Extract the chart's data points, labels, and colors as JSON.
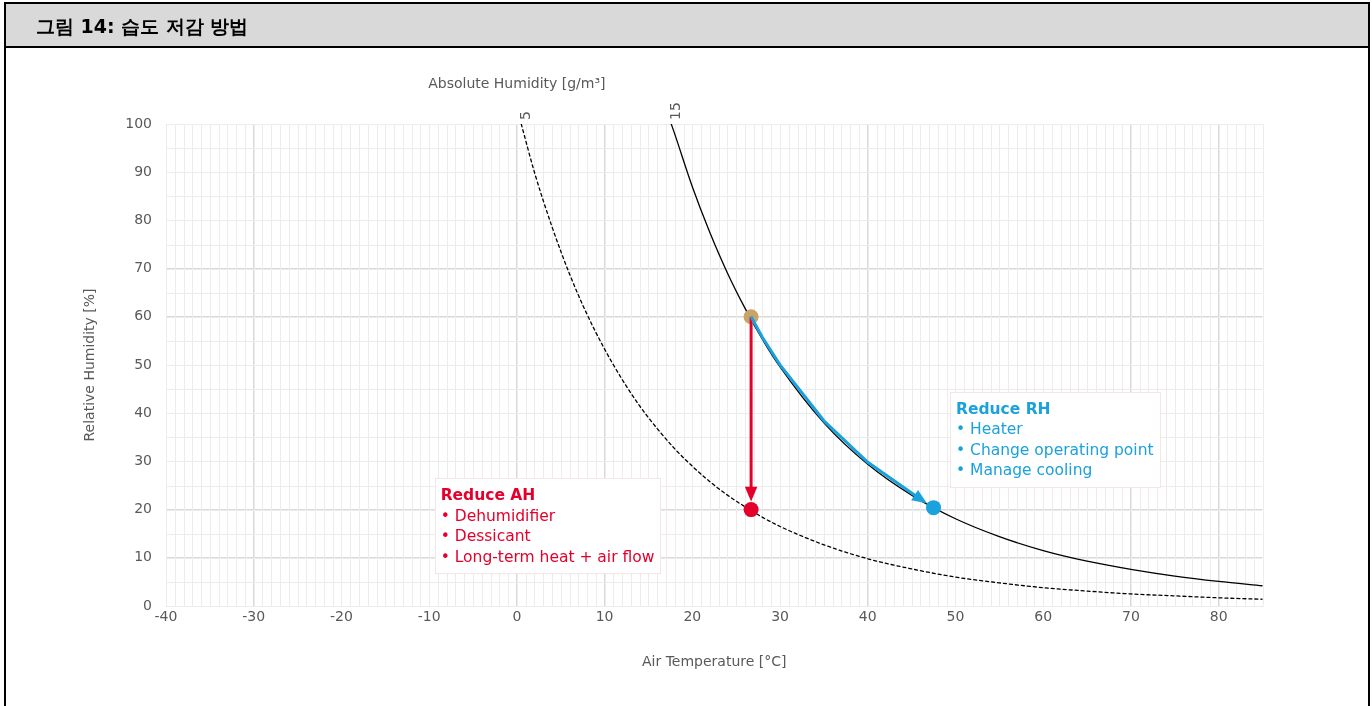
{
  "chart_data": {
    "type": "line",
    "title": "그림 14: 습도 저감 방법",
    "legend_title": "Absolute Humidity [g/m³]",
    "xlabel": "Air Temperature [°C]",
    "ylabel": "Relative Humidity [%]",
    "xlim": [
      -40,
      85
    ],
    "xticks": [
      -40,
      -30,
      -20,
      -10,
      0,
      10,
      20,
      30,
      40,
      50,
      60,
      70,
      80
    ],
    "ylim": [
      0,
      100
    ],
    "yticks": [
      0,
      10,
      20,
      30,
      40,
      50,
      60,
      70,
      80,
      90,
      100
    ],
    "grid": true,
    "legend": false,
    "marker": "circle",
    "series": [
      {
        "name": "5",
        "color": "#000000",
        "line_style": "dashed",
        "marker": "none",
        "x": [
          0.5,
          2,
          4,
          6,
          8,
          10,
          12,
          14,
          16,
          18,
          20,
          22,
          24,
          26,
          28,
          30,
          35,
          40,
          45,
          50,
          55,
          60,
          65,
          70,
          75,
          80,
          85
        ],
        "values": [
          100,
          90,
          78.7,
          68.9,
          60.5,
          53.3,
          47,
          41.5,
          36.8,
          32.6,
          29,
          25.8,
          23,
          20.6,
          18.4,
          16.5,
          12.7,
          9.8,
          7.7,
          6,
          4.8,
          3.8,
          3.1,
          2.5,
          2.1,
          1.7,
          1.4
        ]
      },
      {
        "name": "15",
        "color": "#000000",
        "line_style": "solid",
        "marker": "none",
        "x": [
          17.6,
          18,
          20,
          22,
          24,
          26,
          28,
          30,
          35,
          40,
          45,
          50,
          55,
          60,
          65,
          70,
          75,
          80,
          85
        ],
        "values": [
          100,
          97.9,
          87,
          77.5,
          69.1,
          61.8,
          55.3,
          49.6,
          38,
          29.4,
          23,
          18.1,
          14.4,
          11.5,
          9.3,
          7.6,
          6.2,
          5.1,
          4.2
        ]
      },
      {
        "type": "scatter",
        "color": "#c8a46a",
        "x": [
          26.7
        ],
        "values": [
          60
        ]
      },
      {
        "type": "scatter",
        "color": "#e4002b",
        "x": [
          26.7
        ],
        "values": [
          20
        ]
      },
      {
        "type": "scatter",
        "color": "#1ba1dc",
        "x": [
          47.5
        ],
        "values": [
          20.4
        ]
      }
    ],
    "annotations": [
      "Reduce AH\n• Dehumidifier\n• Dessicant\n• Long-term heat + air flow",
      "Reduce RH\n• Heater\n• Change operating point\n• Manage cooling"
    ]
  }
}
